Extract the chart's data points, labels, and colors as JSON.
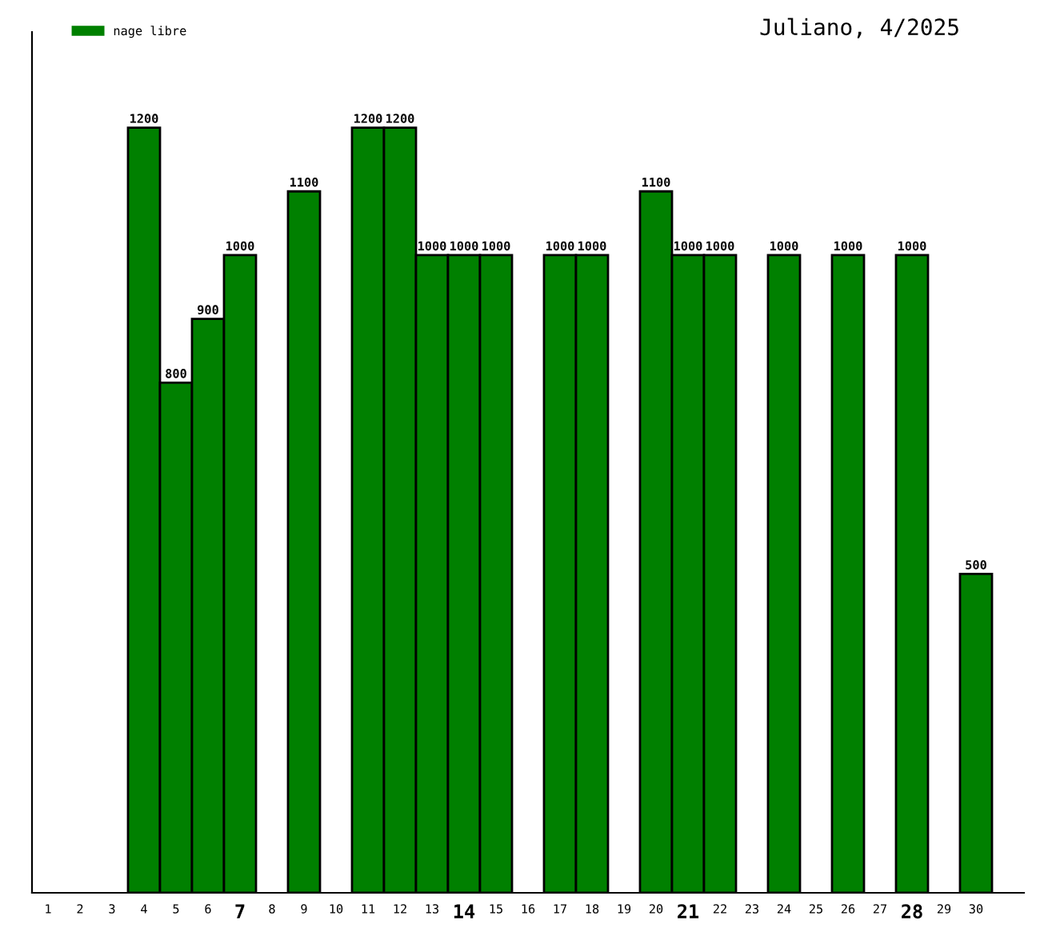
{
  "chart_data": {
    "type": "bar",
    "title": "Juliano, 4/2025",
    "categories": [
      "1",
      "2",
      "3",
      "4",
      "5",
      "6",
      "7",
      "8",
      "9",
      "10",
      "11",
      "12",
      "13",
      "14",
      "15",
      "16",
      "17",
      "18",
      "19",
      "20",
      "21",
      "22",
      "23",
      "24",
      "25",
      "26",
      "27",
      "28",
      "29",
      "30"
    ],
    "series": [
      {
        "name": "nage libre",
        "color": "#008000",
        "values": [
          null,
          null,
          null,
          1200,
          800,
          900,
          1000,
          null,
          1100,
          null,
          1200,
          1200,
          1000,
          1000,
          1000,
          null,
          1000,
          1000,
          null,
          1100,
          1000,
          1000,
          null,
          1000,
          null,
          1000,
          null,
          1000,
          null,
          500
        ]
      }
    ],
    "ylim": [
      0,
      1350
    ],
    "data_labels": true,
    "legend": "top left",
    "grid": false,
    "tick_labels": "x"
  }
}
